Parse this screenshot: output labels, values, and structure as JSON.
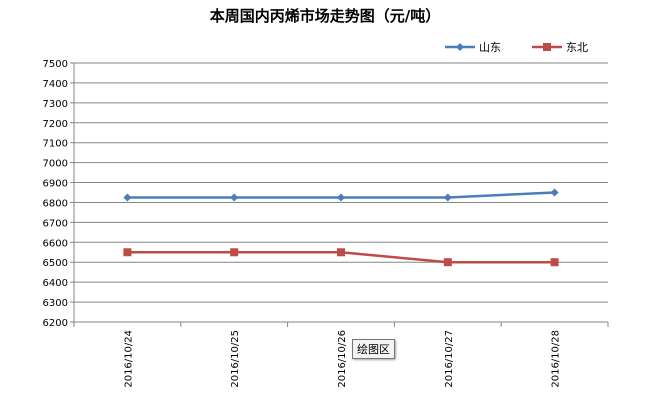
{
  "chart_data": {
    "type": "line",
    "title": "本周国内丙烯市场走势图（元/吨）",
    "categories": [
      "2016/10/24",
      "2016/10/25",
      "2016/10/26",
      "2016/10/27",
      "2016/10/28"
    ],
    "series": [
      {
        "name": "山东",
        "values": [
          6825,
          6825,
          6825,
          6825,
          6850
        ],
        "color": "#4a7ebb",
        "marker": "diamond"
      },
      {
        "name": "东北",
        "values": [
          6550,
          6550,
          6550,
          6500,
          6500
        ],
        "color": "#be4b48",
        "marker": "square"
      }
    ],
    "ylim": [
      6200,
      7500
    ],
    "y_ticks": [
      6200,
      6300,
      6400,
      6500,
      6600,
      6700,
      6800,
      6900,
      7000,
      7100,
      7200,
      7300,
      7400,
      7500
    ],
    "grid": true,
    "legend_position": "top-right"
  },
  "tooltip": {
    "text": "绘图区"
  }
}
